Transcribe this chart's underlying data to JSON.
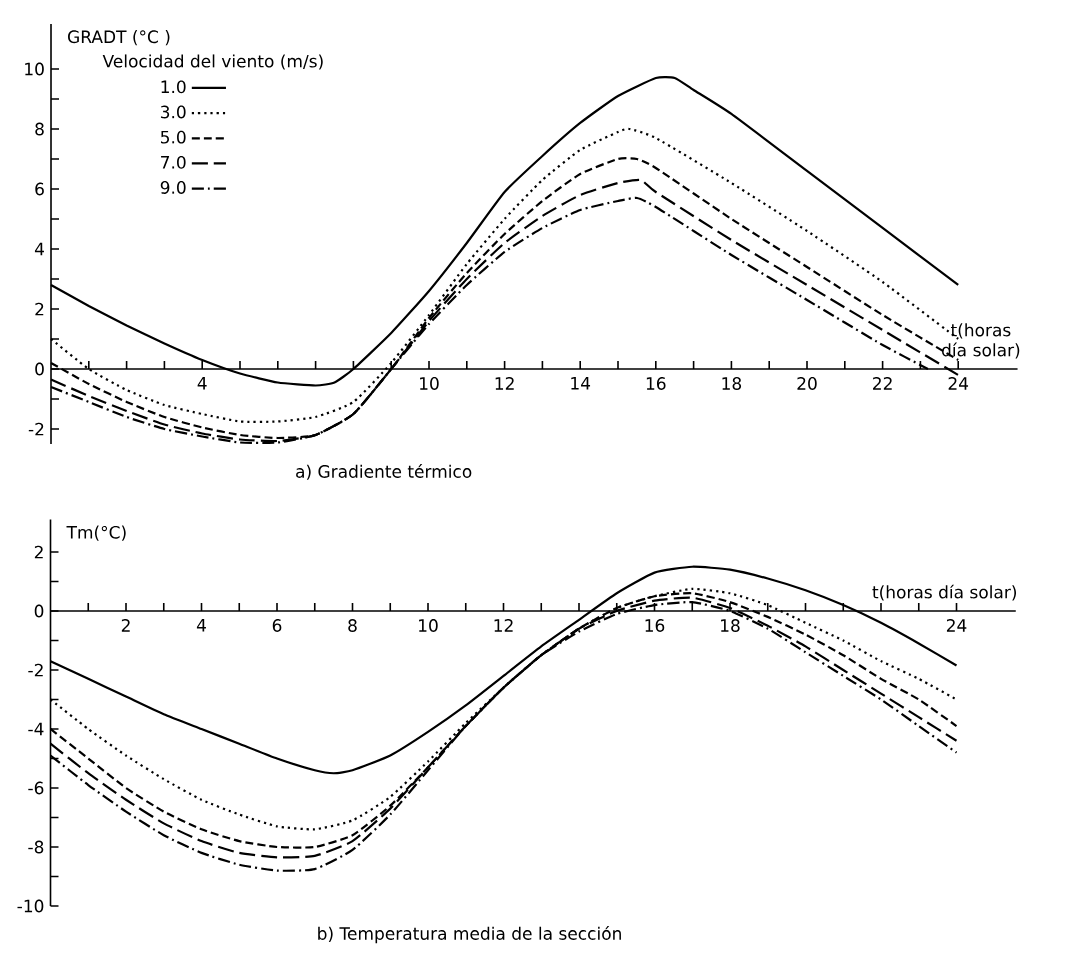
{
  "chart_data": [
    {
      "type": "line",
      "title": "a) Gradiente térmico",
      "xlabel": "t(horas día solar)",
      "ylabel": "GRADT (°C )",
      "legend_title": "Velocidad del viento (m/s)",
      "legend": "top left",
      "xlim": [
        0,
        25.57
      ],
      "ylim": [
        -2.5,
        11.5
      ],
      "xticks": [
        {
          "value": 1,
          "label": null
        },
        {
          "value": 2,
          "label": null
        },
        {
          "value": 3,
          "label": null
        },
        4,
        {
          "value": 5,
          "label": null
        },
        {
          "value": 6,
          "label": null
        },
        {
          "value": 7,
          "label": null
        },
        {
          "value": 8,
          "label": null
        },
        {
          "value": 9,
          "label": null
        },
        10,
        {
          "value": 11,
          "label": null
        },
        12,
        {
          "value": 13,
          "label": null
        },
        14,
        {
          "value": 15,
          "label": null
        },
        16,
        {
          "value": 17,
          "label": null
        },
        18,
        {
          "value": 19,
          "label": null
        },
        20,
        {
          "value": 21,
          "label": null
        },
        22,
        {
          "value": 23,
          "label": null
        },
        24
      ],
      "yticks": [
        -2,
        {
          "value": -1,
          "label": null
        },
        0,
        {
          "value": 1,
          "label": null
        },
        2,
        {
          "value": 3,
          "label": null
        },
        4,
        {
          "value": 5,
          "label": null
        },
        6,
        {
          "value": 7,
          "label": null
        },
        8,
        {
          "value": 9,
          "label": null
        },
        10
      ],
      "series": [
        {
          "name": "1.0",
          "color": "#000000",
          "line_style": "solid",
          "x": [
            0,
            1,
            2,
            3,
            4,
            5,
            6,
            7,
            7.5,
            8,
            9,
            10,
            11,
            12,
            13,
            14,
            15,
            16,
            16.5,
            17,
            18,
            20,
            22,
            24
          ],
          "values": [
            2.8,
            2.1,
            1.45,
            0.85,
            0.3,
            -0.15,
            -0.45,
            -0.55,
            -0.45,
            0,
            1.2,
            2.6,
            4.2,
            5.9,
            7.1,
            8.2,
            9.1,
            9.7,
            9.7,
            9.3,
            8.5,
            6.6,
            4.7,
            2.8
          ]
        },
        {
          "name": "3.0",
          "color": "#000000",
          "line_style": "dotted",
          "x": [
            0,
            1,
            2,
            3,
            4,
            5,
            6,
            7,
            8,
            9,
            10,
            11,
            12,
            13,
            14,
            15,
            15.3,
            16,
            18,
            20,
            22,
            24
          ],
          "values": [
            1.0,
            0,
            -0.7,
            -1.2,
            -1.5,
            -1.75,
            -1.75,
            -1.6,
            -1.1,
            0.2,
            1.8,
            3.5,
            5.0,
            6.3,
            7.3,
            7.9,
            8.0,
            7.7,
            6.2,
            4.6,
            2.9,
            1.0
          ]
        },
        {
          "name": "5.0",
          "color": "#000000",
          "line_style": "dashed",
          "x": [
            0,
            1,
            2,
            3,
            4,
            5,
            6,
            7,
            8,
            9,
            10,
            11,
            12,
            13,
            14,
            15,
            15.5,
            16,
            18,
            20,
            22,
            24
          ],
          "values": [
            0.2,
            -0.5,
            -1.1,
            -1.6,
            -1.95,
            -2.2,
            -2.3,
            -2.2,
            -1.5,
            0,
            1.7,
            3.2,
            4.5,
            5.6,
            6.5,
            7.0,
            7.0,
            6.7,
            5.0,
            3.4,
            1.8,
            0.3
          ]
        },
        {
          "name": "7.0",
          "color": "#000000",
          "line_style": "longdashed",
          "x": [
            0,
            1,
            2,
            3,
            4,
            5,
            6,
            7,
            8,
            9,
            10,
            11,
            12,
            13,
            14,
            15,
            15.6,
            16,
            18,
            20,
            22,
            24
          ],
          "values": [
            -0.35,
            -0.9,
            -1.4,
            -1.85,
            -2.15,
            -2.35,
            -2.4,
            -2.2,
            -1.5,
            0,
            1.6,
            3.0,
            4.2,
            5.1,
            5.8,
            6.2,
            6.3,
            5.9,
            4.3,
            2.8,
            1.3,
            -0.2
          ]
        },
        {
          "name": "9.0",
          "color": "#000000",
          "line_style": "dashdot",
          "x": [
            0,
            1,
            2,
            3,
            4,
            5,
            6,
            7,
            8,
            9,
            10,
            11,
            12,
            13,
            14,
            15,
            15.5,
            16,
            18,
            20,
            22,
            23.2
          ],
          "values": [
            -0.6,
            -1.1,
            -1.6,
            -2.0,
            -2.25,
            -2.45,
            -2.45,
            -2.2,
            -1.5,
            0,
            1.5,
            2.8,
            3.9,
            4.7,
            5.3,
            5.6,
            5.7,
            5.4,
            3.8,
            2.3,
            0.8,
            0
          ]
        }
      ]
    },
    {
      "type": "line",
      "title": "b) Temperatura media de la sección",
      "xlabel": "t(horas día solar)",
      "ylabel": "Tm(°C)",
      "xlim": [
        0,
        25.57
      ],
      "ylim": [
        -10,
        3.1
      ],
      "xticks": [
        {
          "value": 1,
          "label": null
        },
        2,
        {
          "value": 3,
          "label": null
        },
        4,
        {
          "value": 5,
          "label": null
        },
        6,
        {
          "value": 7,
          "label": null
        },
        8,
        {
          "value": 9,
          "label": null
        },
        10,
        {
          "value": 11,
          "label": null
        },
        12,
        {
          "value": 13,
          "label": null
        },
        {
          "value": 14,
          "label": null
        },
        {
          "value": 15,
          "label": null
        },
        16,
        {
          "value": 17,
          "label": null
        },
        18,
        {
          "value": 19,
          "label": null
        },
        {
          "value": 20,
          "label": null
        },
        {
          "value": 21,
          "label": null
        },
        {
          "value": 22,
          "label": null
        },
        {
          "value": 23,
          "label": null
        },
        24
      ],
      "yticks": [
        -10,
        {
          "value": -9,
          "label": null
        },
        -8,
        {
          "value": -7,
          "label": null
        },
        -6,
        {
          "value": -5,
          "label": null
        },
        -4,
        {
          "value": -3,
          "label": null
        },
        -2,
        {
          "value": -1,
          "label": null
        },
        0,
        {
          "value": 1,
          "label": null
        },
        2
      ],
      "series": [
        {
          "color": "#000000",
          "line_style": "solid",
          "x": [
            0,
            1,
            2,
            3,
            4,
            5,
            6,
            7,
            7.5,
            8,
            9,
            10,
            11,
            12,
            13,
            14,
            15,
            16,
            17,
            18,
            19,
            20,
            21,
            22,
            23,
            24
          ],
          "values": [
            -1.7,
            -2.3,
            -2.9,
            -3.5,
            -4.0,
            -4.5,
            -5.0,
            -5.4,
            -5.5,
            -5.4,
            -4.9,
            -4.1,
            -3.2,
            -2.2,
            -1.2,
            -0.3,
            0.6,
            1.3,
            1.5,
            1.4,
            1.1,
            0.7,
            0.2,
            -0.4,
            -1.1,
            -1.85
          ]
        },
        {
          "color": "#000000",
          "line_style": "dotted",
          "x": [
            0,
            1,
            2,
            3,
            4,
            5,
            6,
            7,
            8,
            9,
            10,
            11,
            12,
            13,
            14,
            15,
            16,
            17,
            18,
            19,
            20,
            21,
            22,
            23,
            24
          ],
          "values": [
            -3.0,
            -4.0,
            -4.9,
            -5.7,
            -6.4,
            -6.9,
            -7.3,
            -7.4,
            -7.1,
            -6.3,
            -5.1,
            -3.8,
            -2.6,
            -1.5,
            -0.6,
            0.1,
            0.5,
            0.75,
            0.6,
            0.2,
            -0.4,
            -1.0,
            -1.7,
            -2.3,
            -3.0
          ]
        },
        {
          "color": "#000000",
          "line_style": "dashed",
          "x": [
            0,
            1,
            2,
            3,
            4,
            5,
            6,
            7,
            8,
            9,
            10,
            11,
            12,
            13,
            14,
            15,
            16,
            17,
            18,
            19,
            20,
            21,
            22,
            23,
            24
          ],
          "values": [
            -4.0,
            -5.0,
            -6.0,
            -6.8,
            -7.4,
            -7.8,
            -8.0,
            -8.0,
            -7.6,
            -6.6,
            -5.3,
            -3.9,
            -2.6,
            -1.5,
            -0.6,
            0.1,
            0.5,
            0.6,
            0.3,
            -0.2,
            -0.8,
            -1.5,
            -2.3,
            -3.0,
            -3.9
          ]
        },
        {
          "color": "#000000",
          "line_style": "longdashed",
          "x": [
            0,
            1,
            2,
            3,
            4,
            5,
            6,
            7,
            8,
            9,
            10,
            11,
            12,
            13,
            14,
            15,
            16,
            17,
            18,
            19,
            20,
            21,
            22,
            23,
            24
          ],
          "values": [
            -4.5,
            -5.5,
            -6.4,
            -7.2,
            -7.8,
            -8.2,
            -8.35,
            -8.3,
            -7.8,
            -6.7,
            -5.3,
            -3.9,
            -2.6,
            -1.5,
            -0.6,
            0.0,
            0.35,
            0.45,
            0.1,
            -0.5,
            -1.2,
            -2.0,
            -2.8,
            -3.6,
            -4.4
          ]
        },
        {
          "color": "#000000",
          "line_style": "dashdot",
          "x": [
            0,
            1,
            2,
            3,
            4,
            5,
            6,
            7,
            8,
            9,
            10,
            11,
            12,
            13,
            14,
            15,
            16,
            17,
            18,
            19,
            20,
            21,
            22,
            23,
            24
          ],
          "values": [
            -4.9,
            -5.9,
            -6.8,
            -7.6,
            -8.2,
            -8.6,
            -8.8,
            -8.75,
            -8.1,
            -6.9,
            -5.4,
            -3.9,
            -2.6,
            -1.5,
            -0.7,
            -0.1,
            0.2,
            0.3,
            0.0,
            -0.6,
            -1.4,
            -2.2,
            -3.0,
            -3.9,
            -4.8
          ]
        }
      ]
    }
  ]
}
